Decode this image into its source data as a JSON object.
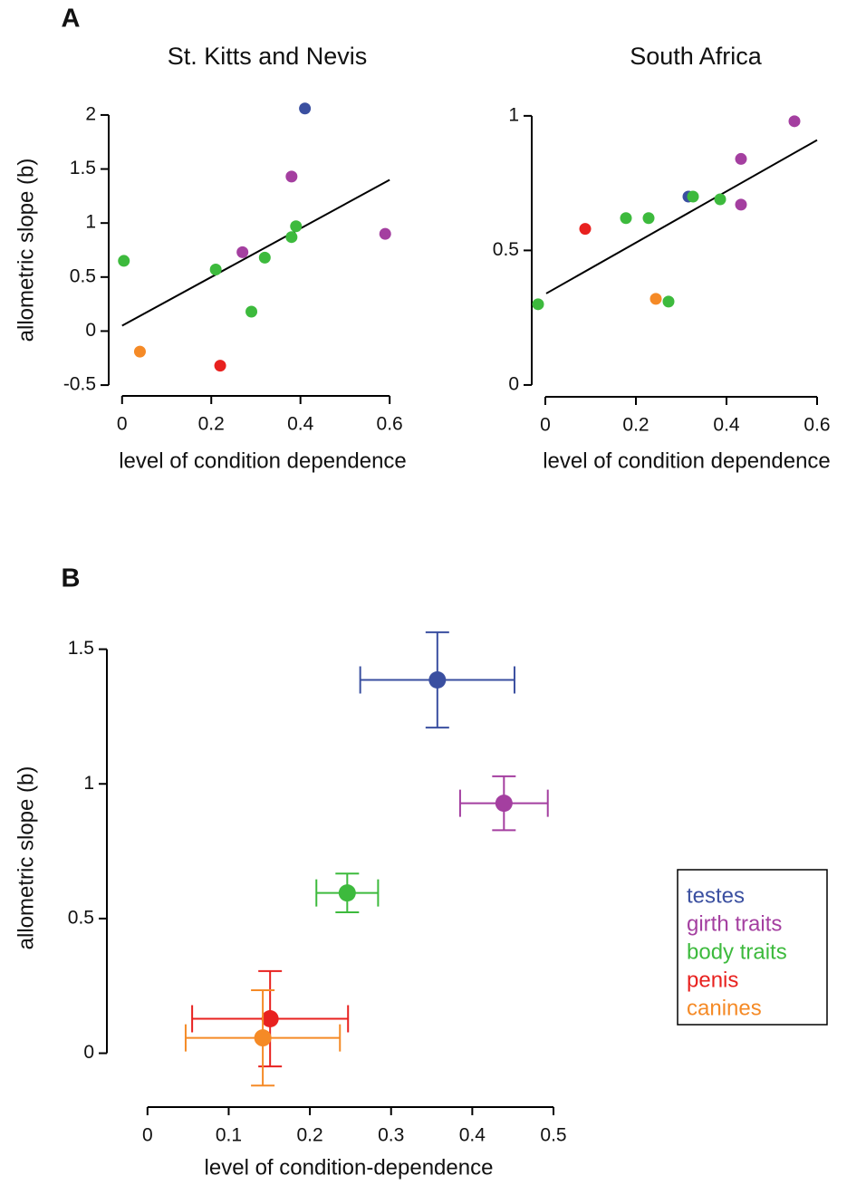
{
  "chart_data": [
    {
      "type": "scatter",
      "panel_label": "A",
      "title": "St. Kitts and Nevis",
      "xlabel": "level of condition dependence",
      "ylabel": "allometric slope (b)",
      "xlim": [
        -0.03,
        0.62
      ],
      "ylim": [
        -0.6,
        2.1
      ],
      "xticks": [
        0,
        0.2,
        0.4,
        0.6
      ],
      "yticks": [
        -0.5,
        0,
        0.5,
        1,
        1.5,
        2
      ],
      "series": [
        {
          "color": "#3a4fa0",
          "x": [
            0.41
          ],
          "values": [
            2.06
          ]
        },
        {
          "color": "#a43fa0",
          "x": [
            0.27,
            0.38,
            0.59
          ],
          "values": [
            0.73,
            1.43,
            0.9
          ]
        },
        {
          "color": "#3dba3d",
          "x": [
            0.004,
            0.21,
            0.29,
            0.32,
            0.38,
            0.39
          ],
          "values": [
            0.65,
            0.57,
            0.18,
            0.68,
            0.87,
            0.97
          ]
        },
        {
          "color": "#e8211f",
          "x": [
            0.22
          ],
          "values": [
            -0.32
          ]
        },
        {
          "color": "#f58a26",
          "x": [
            0.04
          ],
          "values": [
            -0.19
          ]
        }
      ],
      "fit": {
        "color": "#000000",
        "x": [
          0,
          0.6
        ],
        "values": [
          0.05,
          1.4
        ]
      }
    },
    {
      "type": "scatter",
      "title": "South Africa",
      "xlabel": "level of condition dependence",
      "xlim": [
        -0.03,
        0.62
      ],
      "ylim": [
        -0.044,
        1.04
      ],
      "xticks": [
        0,
        0.2,
        0.4,
        0.6
      ],
      "yticks": [
        0,
        0.5,
        1
      ],
      "series": [
        {
          "color": "#3a4fa0",
          "x": [
            0.316
          ],
          "values": [
            0.7
          ]
        },
        {
          "color": "#a43fa0",
          "x": [
            0.432,
            0.432,
            0.55
          ],
          "values": [
            0.84,
            0.67,
            0.98
          ]
        },
        {
          "color": "#3dba3d",
          "x": [
            -0.016,
            0.178,
            0.228,
            0.272,
            0.326,
            0.386
          ],
          "values": [
            0.3,
            0.62,
            0.62,
            0.31,
            0.7,
            0.69
          ]
        },
        {
          "color": "#e8211f",
          "x": [
            0.088
          ],
          "values": [
            0.58
          ]
        },
        {
          "color": "#f58a26",
          "x": [
            0.244
          ],
          "values": [
            0.32
          ]
        }
      ],
      "fit": {
        "color": "#000000",
        "x": [
          0.002,
          0.6
        ],
        "values": [
          0.34,
          0.91
        ]
      }
    },
    {
      "type": "errorbar",
      "panel_label": "B",
      "xlabel": "level of condition-dependence",
      "ylabel": "allometric slope (b)",
      "xlim": [
        -0.05,
        0.5
      ],
      "ylim": [
        -0.2,
        1.65
      ],
      "xticks": [
        0,
        0.1,
        0.2,
        0.3,
        0.4,
        0.5
      ],
      "yticks": [
        0,
        0.5,
        1,
        1.5
      ],
      "legend": "right",
      "series": [
        {
          "name": "testes",
          "color": "#3a4fa0",
          "x": [
            0.357
          ],
          "values": [
            1.386
          ],
          "xerr": [
            0.095
          ],
          "yerr": [
            0.177
          ]
        },
        {
          "name": "girth traits",
          "color": "#a43fa0",
          "x": [
            0.439
          ],
          "values": [
            0.928
          ],
          "xerr": [
            0.054
          ],
          "yerr": [
            0.1
          ]
        },
        {
          "name": "body traits",
          "color": "#3dba3d",
          "x": [
            0.246
          ],
          "values": [
            0.595
          ],
          "xerr": [
            0.038
          ],
          "yerr": [
            0.072
          ]
        },
        {
          "name": "penis",
          "color": "#e8211f",
          "x": [
            0.151
          ],
          "values": [
            0.128
          ],
          "xerr": [
            0.096
          ],
          "yerr": [
            0.177
          ]
        },
        {
          "name": "canines",
          "color": "#f58a26",
          "x": [
            0.142
          ],
          "values": [
            0.057
          ],
          "xerr": [
            0.095
          ],
          "yerr": [
            0.177
          ]
        }
      ]
    }
  ]
}
